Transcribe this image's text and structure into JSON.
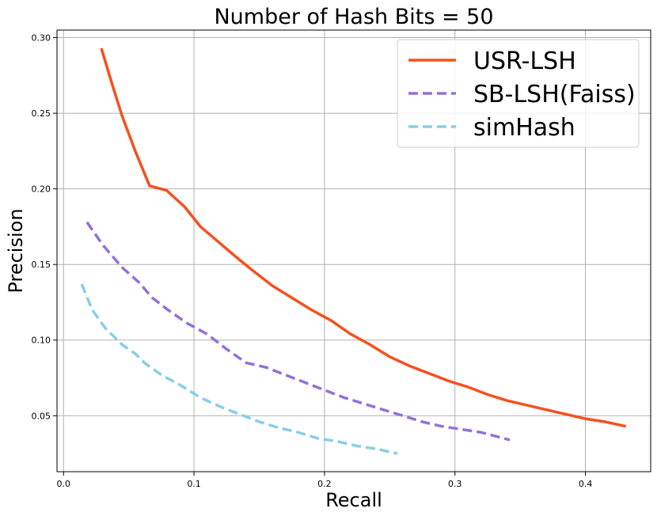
{
  "chart_data": {
    "type": "line",
    "title": "Number of Hash Bits = 50",
    "xlabel": "Recall",
    "ylabel": "Precision",
    "xlim": [
      -0.005,
      0.45
    ],
    "ylim": [
      0.013,
      0.305
    ],
    "xticks": [
      0.0,
      0.1,
      0.2,
      0.3,
      0.4
    ],
    "xtick_labels": [
      "0.0",
      "0.1",
      "0.2",
      "0.3",
      "0.4"
    ],
    "yticks": [
      0.05,
      0.1,
      0.15,
      0.2,
      0.25,
      0.3
    ],
    "ytick_labels": [
      "0.05",
      "0.10",
      "0.15",
      "0.20",
      "0.25",
      "0.30"
    ],
    "grid": true,
    "legend_position": "top-right",
    "series": [
      {
        "name": "USR-LSH",
        "color": "#f4511e",
        "style": "solid",
        "x": [
          0.029,
          0.037,
          0.045,
          0.055,
          0.066,
          0.079,
          0.093,
          0.105,
          0.12,
          0.135,
          0.145,
          0.16,
          0.175,
          0.19,
          0.205,
          0.22,
          0.235,
          0.25,
          0.265,
          0.28,
          0.295,
          0.31,
          0.325,
          0.34,
          0.355,
          0.37,
          0.385,
          0.4,
          0.415,
          0.431
        ],
        "y": [
          0.293,
          0.27,
          0.248,
          0.225,
          0.202,
          0.199,
          0.188,
          0.175,
          0.164,
          0.153,
          0.146,
          0.136,
          0.128,
          0.12,
          0.113,
          0.104,
          0.097,
          0.089,
          0.083,
          0.078,
          0.073,
          0.069,
          0.064,
          0.06,
          0.057,
          0.054,
          0.051,
          0.048,
          0.046,
          0.043
        ]
      },
      {
        "name": "SB-LSH(Faiss)",
        "color": "#9370db",
        "style": "dashed",
        "x": [
          0.018,
          0.03,
          0.045,
          0.058,
          0.068,
          0.08,
          0.095,
          0.11,
          0.125,
          0.14,
          0.155,
          0.17,
          0.185,
          0.2,
          0.215,
          0.23,
          0.245,
          0.26,
          0.275,
          0.29,
          0.305,
          0.32,
          0.342
        ],
        "y": [
          0.178,
          0.163,
          0.148,
          0.138,
          0.128,
          0.12,
          0.111,
          0.104,
          0.094,
          0.085,
          0.082,
          0.077,
          0.072,
          0.067,
          0.062,
          0.058,
          0.054,
          0.05,
          0.046,
          0.043,
          0.041,
          0.039,
          0.034
        ]
      },
      {
        "name": "simHash",
        "color": "#87ceeb",
        "style": "dashed",
        "x": [
          0.014,
          0.022,
          0.032,
          0.045,
          0.055,
          0.062,
          0.075,
          0.09,
          0.105,
          0.12,
          0.135,
          0.15,
          0.165,
          0.18,
          0.195,
          0.21,
          0.225,
          0.24,
          0.256
        ],
        "y": [
          0.137,
          0.12,
          0.108,
          0.097,
          0.091,
          0.085,
          0.077,
          0.07,
          0.062,
          0.056,
          0.051,
          0.046,
          0.042,
          0.039,
          0.035,
          0.033,
          0.03,
          0.028,
          0.025
        ]
      }
    ]
  }
}
